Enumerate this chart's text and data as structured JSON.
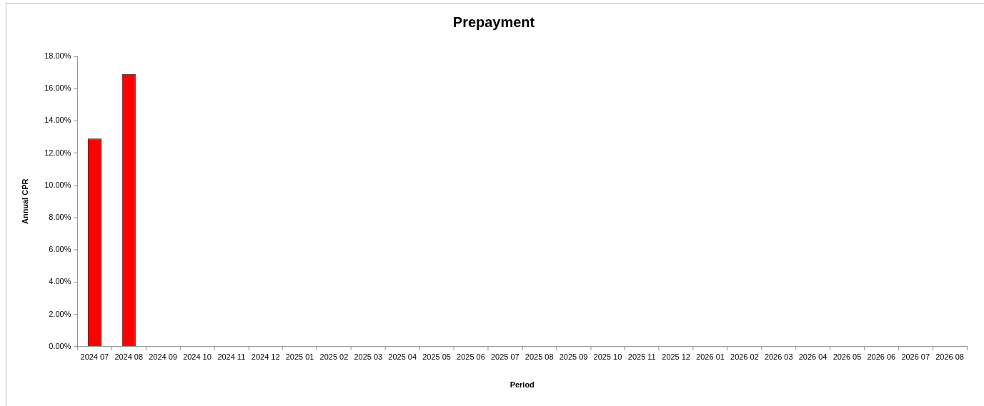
{
  "chart_data": {
    "type": "bar",
    "title": "Prepayment",
    "xlabel": "Period",
    "ylabel": "Annual CPR",
    "categories": [
      "2024 07",
      "2024 08",
      "2024 09",
      "2024 10",
      "2024 11",
      "2024 12",
      "2025 01",
      "2025 02",
      "2025 03",
      "2025 04",
      "2025 05",
      "2025 06",
      "2025 07",
      "2025 08",
      "2025 09",
      "2025 10",
      "2025 11",
      "2025 12",
      "2026 01",
      "2026 02",
      "2026 03",
      "2026 04",
      "2026 05",
      "2026 06",
      "2026 07",
      "2026 08"
    ],
    "values": [
      12.9,
      16.9,
      null,
      null,
      null,
      null,
      null,
      null,
      null,
      null,
      null,
      null,
      null,
      null,
      null,
      null,
      null,
      null,
      null,
      null,
      null,
      null,
      null,
      null,
      null,
      null
    ],
    "color": "#ff0000",
    "ylim": [
      0,
      18
    ],
    "yticks": [
      {
        "value": 0,
        "label": "0.00%"
      },
      {
        "value": 2,
        "label": "2.00%"
      },
      {
        "value": 4,
        "label": "4.00%"
      },
      {
        "value": 6,
        "label": "6.00%"
      },
      {
        "value": 8,
        "label": "8.00%"
      },
      {
        "value": 10,
        "label": "10.00%"
      },
      {
        "value": 12,
        "label": "12.00%"
      },
      {
        "value": 14,
        "label": "14.00%"
      },
      {
        "value": 16,
        "label": "16.00%"
      },
      {
        "value": 18,
        "label": "18.00%"
      }
    ]
  }
}
